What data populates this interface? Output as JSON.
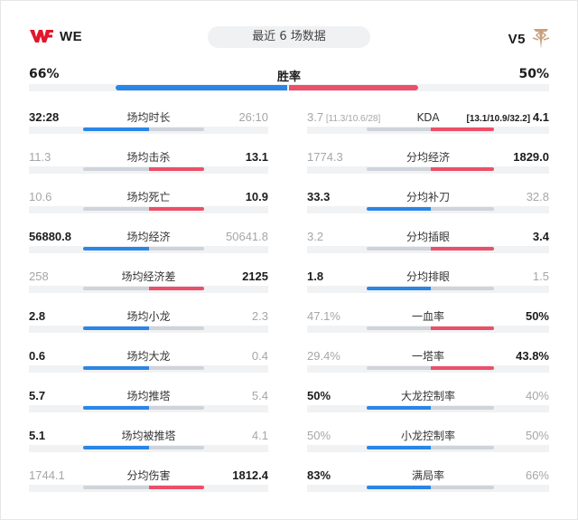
{
  "header": {
    "team_left": "WE",
    "team_right": "V5",
    "title": "最近 6 场数据"
  },
  "winrate": {
    "label": "胜率",
    "left": "66%",
    "right": "50%"
  },
  "colors": {
    "left_team": "#2a86e6",
    "right_team": "#ec4f69",
    "neutral": "#cfd3da"
  },
  "left_stats": [
    {
      "label": "场均时长",
      "left": "32:28",
      "right": "26:10",
      "winner": "left"
    },
    {
      "label": "场均击杀",
      "left": "11.3",
      "right": "13.1",
      "winner": "right"
    },
    {
      "label": "场均死亡",
      "left": "10.6",
      "right": "10.9",
      "winner": "right"
    },
    {
      "label": "场均经济",
      "left": "56880.8",
      "right": "50641.8",
      "winner": "left"
    },
    {
      "label": "场均经济差",
      "left": "258",
      "right": "2125",
      "winner": "right"
    },
    {
      "label": "场均小龙",
      "left": "2.8",
      "right": "2.3",
      "winner": "left"
    },
    {
      "label": "场均大龙",
      "left": "0.6",
      "right": "0.4",
      "winner": "left"
    },
    {
      "label": "场均推塔",
      "left": "5.7",
      "right": "5.4",
      "winner": "left"
    },
    {
      "label": "场均被推塔",
      "left": "5.1",
      "right": "4.1",
      "winner": "left"
    },
    {
      "label": "分均伤害",
      "left": "1744.1",
      "right": "1812.4",
      "winner": "right"
    }
  ],
  "right_stats": [
    {
      "label": "KDA",
      "left": "3.7",
      "left_detail": "[11.3/10.6/28]",
      "right": "4.1",
      "right_detail": "[13.1/10.9/32.2]",
      "winner": "right"
    },
    {
      "label": "分均经济",
      "left": "1774.3",
      "right": "1829.0",
      "winner": "right"
    },
    {
      "label": "分均补刀",
      "left": "33.3",
      "right": "32.8",
      "winner": "left"
    },
    {
      "label": "分均插眼",
      "left": "3.2",
      "right": "3.4",
      "winner": "right"
    },
    {
      "label": "分均排眼",
      "left": "1.8",
      "right": "1.5",
      "winner": "left"
    },
    {
      "label": "一血率",
      "left": "47.1%",
      "right": "50%",
      "winner": "right"
    },
    {
      "label": "一塔率",
      "left": "29.4%",
      "right": "43.8%",
      "winner": "right"
    },
    {
      "label": "大龙控制率",
      "left": "50%",
      "right": "40%",
      "winner": "left"
    },
    {
      "label": "小龙控制率",
      "left": "50%",
      "right": "50%",
      "winner": "none"
    },
    {
      "label": "满局率",
      "left": "83%",
      "right": "66%",
      "winner": "left"
    }
  ]
}
